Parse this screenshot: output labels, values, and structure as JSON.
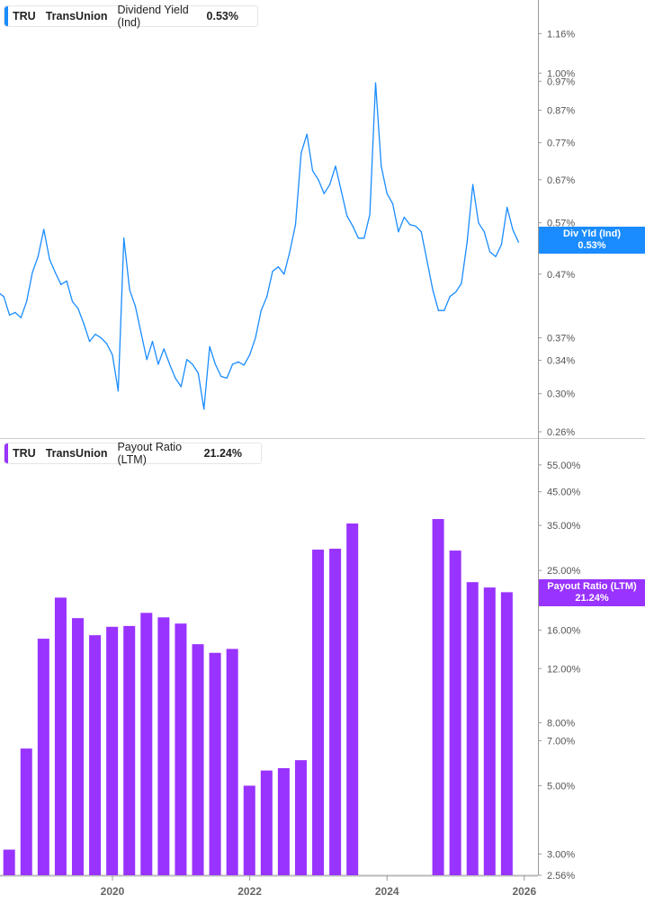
{
  "colors": {
    "yield": "#1a8cff",
    "payout": "#9933ff",
    "axis": "#999999",
    "text": "#555555"
  },
  "top_legend": {
    "ticker": "TRU",
    "company": "TransUnion",
    "metric": "Dividend Yield (Ind)",
    "value": "0.53%"
  },
  "bottom_legend": {
    "ticker": "TRU",
    "company": "TransUnion",
    "metric": "Payout Ratio (LTM)",
    "value": "21.24%"
  },
  "top_badge": {
    "label": "Div Yld (Ind)",
    "value": "0.53%"
  },
  "bottom_badge": {
    "label": "Payout Ratio (LTM)",
    "value": "21.24%"
  },
  "chart_data": [
    {
      "type": "line",
      "scale": "log",
      "series_name": "Div Yld (Ind)",
      "unit": "%",
      "yticks": [
        1.16,
        1.0,
        0.97,
        0.87,
        0.77,
        0.67,
        0.57,
        0.47,
        0.37,
        0.34,
        0.3,
        0.26
      ],
      "ylim": [
        0.26,
        1.16
      ],
      "x": [
        "2018-05",
        "2018-06",
        "2018-07",
        "2018-08",
        "2018-09",
        "2018-10",
        "2018-11",
        "2018-12",
        "2019-01",
        "2019-02",
        "2019-03",
        "2019-04",
        "2019-05",
        "2019-06",
        "2019-07",
        "2019-08",
        "2019-09",
        "2019-10",
        "2019-11",
        "2019-12",
        "2020-01",
        "2020-02",
        "2020-03",
        "2020-04",
        "2020-05",
        "2020-06",
        "2020-07",
        "2020-08",
        "2020-09",
        "2020-10",
        "2020-11",
        "2020-12",
        "2021-01",
        "2021-02",
        "2021-03",
        "2021-04",
        "2021-05",
        "2021-06",
        "2021-07",
        "2021-08",
        "2021-09",
        "2021-10",
        "2021-11",
        "2021-12",
        "2022-01",
        "2022-02",
        "2022-03",
        "2022-04",
        "2022-05",
        "2022-06",
        "2022-07",
        "2022-08",
        "2022-09",
        "2022-10",
        "2022-11",
        "2022-12",
        "2023-01",
        "2023-02",
        "2023-03",
        "2023-04",
        "2023-05",
        "2023-06",
        "2023-07",
        "2023-08",
        "2023-09",
        "2023-10",
        "2023-11",
        "2023-12",
        "2024-01",
        "2024-02",
        "2024-03",
        "2024-04",
        "2024-05",
        "2024-06",
        "2024-07",
        "2024-08",
        "2024-09",
        "2024-10",
        "2024-11",
        "2024-12",
        "2025-01",
        "2025-02",
        "2025-03",
        "2025-04",
        "2025-05",
        "2025-06",
        "2025-07",
        "2025-08",
        "2025-09",
        "2025-10",
        "2025-11",
        "2025-12"
      ],
      "values": [
        0.439,
        0.432,
        0.403,
        0.407,
        0.399,
        0.424,
        0.473,
        0.502,
        0.556,
        0.497,
        0.473,
        0.452,
        0.458,
        0.424,
        0.413,
        0.39,
        0.365,
        0.375,
        0.37,
        0.362,
        0.347,
        0.303,
        0.538,
        0.443,
        0.417,
        0.377,
        0.341,
        0.365,
        0.335,
        0.355,
        0.335,
        0.318,
        0.308,
        0.341,
        0.335,
        0.324,
        0.283,
        0.358,
        0.335,
        0.32,
        0.318,
        0.335,
        0.338,
        0.334,
        0.347,
        0.37,
        0.41,
        0.432,
        0.475,
        0.483,
        0.47,
        0.511,
        0.566,
        0.741,
        0.795,
        0.693,
        0.67,
        0.636,
        0.658,
        0.705,
        0.643,
        0.585,
        0.563,
        0.538,
        0.538,
        0.588,
        0.964,
        0.705,
        0.636,
        0.612,
        0.551,
        0.582,
        0.566,
        0.563,
        0.551,
        0.494,
        0.443,
        0.41,
        0.41,
        0.432,
        0.439,
        0.454,
        0.529,
        0.658,
        0.57,
        0.551,
        0.511,
        0.502,
        0.525,
        0.604,
        0.555,
        0.53
      ]
    },
    {
      "type": "bar",
      "scale": "log",
      "series_name": "Payout Ratio (LTM)",
      "unit": "%",
      "yticks": [
        55,
        45,
        35,
        25,
        20,
        16,
        12,
        8,
        7,
        5,
        3,
        2.56
      ],
      "ytick_labels": [
        "55.00%",
        "45.00%",
        "35.00%",
        "25.00%",
        "20.00%",
        "16.00%",
        "12.00%",
        "8.00%",
        "7.00%",
        "5.00%",
        "3.00%",
        "2.56%"
      ],
      "ylim": [
        2.56,
        55
      ],
      "categories": [
        "2018-06",
        "2018-09",
        "2018-12",
        "2019-03",
        "2019-06",
        "2019-09",
        "2019-12",
        "2020-03",
        "2020-06",
        "2020-09",
        "2020-12",
        "2021-03",
        "2021-06",
        "2021-09",
        "2021-12",
        "2022-03",
        "2022-06",
        "2022-09",
        "2022-12",
        "2023-03",
        "2023-06",
        "2024-09",
        "2024-12",
        "2025-03",
        "2025-06",
        "2025-09"
      ],
      "values": [
        3.1,
        6.6,
        15.0,
        20.4,
        17.5,
        15.4,
        16.4,
        16.5,
        18.2,
        17.6,
        16.8,
        14.4,
        13.5,
        13.9,
        5.0,
        5.6,
        5.7,
        6.05,
        29.2,
        29.4,
        35.5,
        36.7,
        29.0,
        22.9,
        22.0,
        21.24
      ]
    }
  ],
  "xaxis": {
    "ticks": [
      "2020",
      "2022",
      "2024",
      "2026"
    ]
  }
}
